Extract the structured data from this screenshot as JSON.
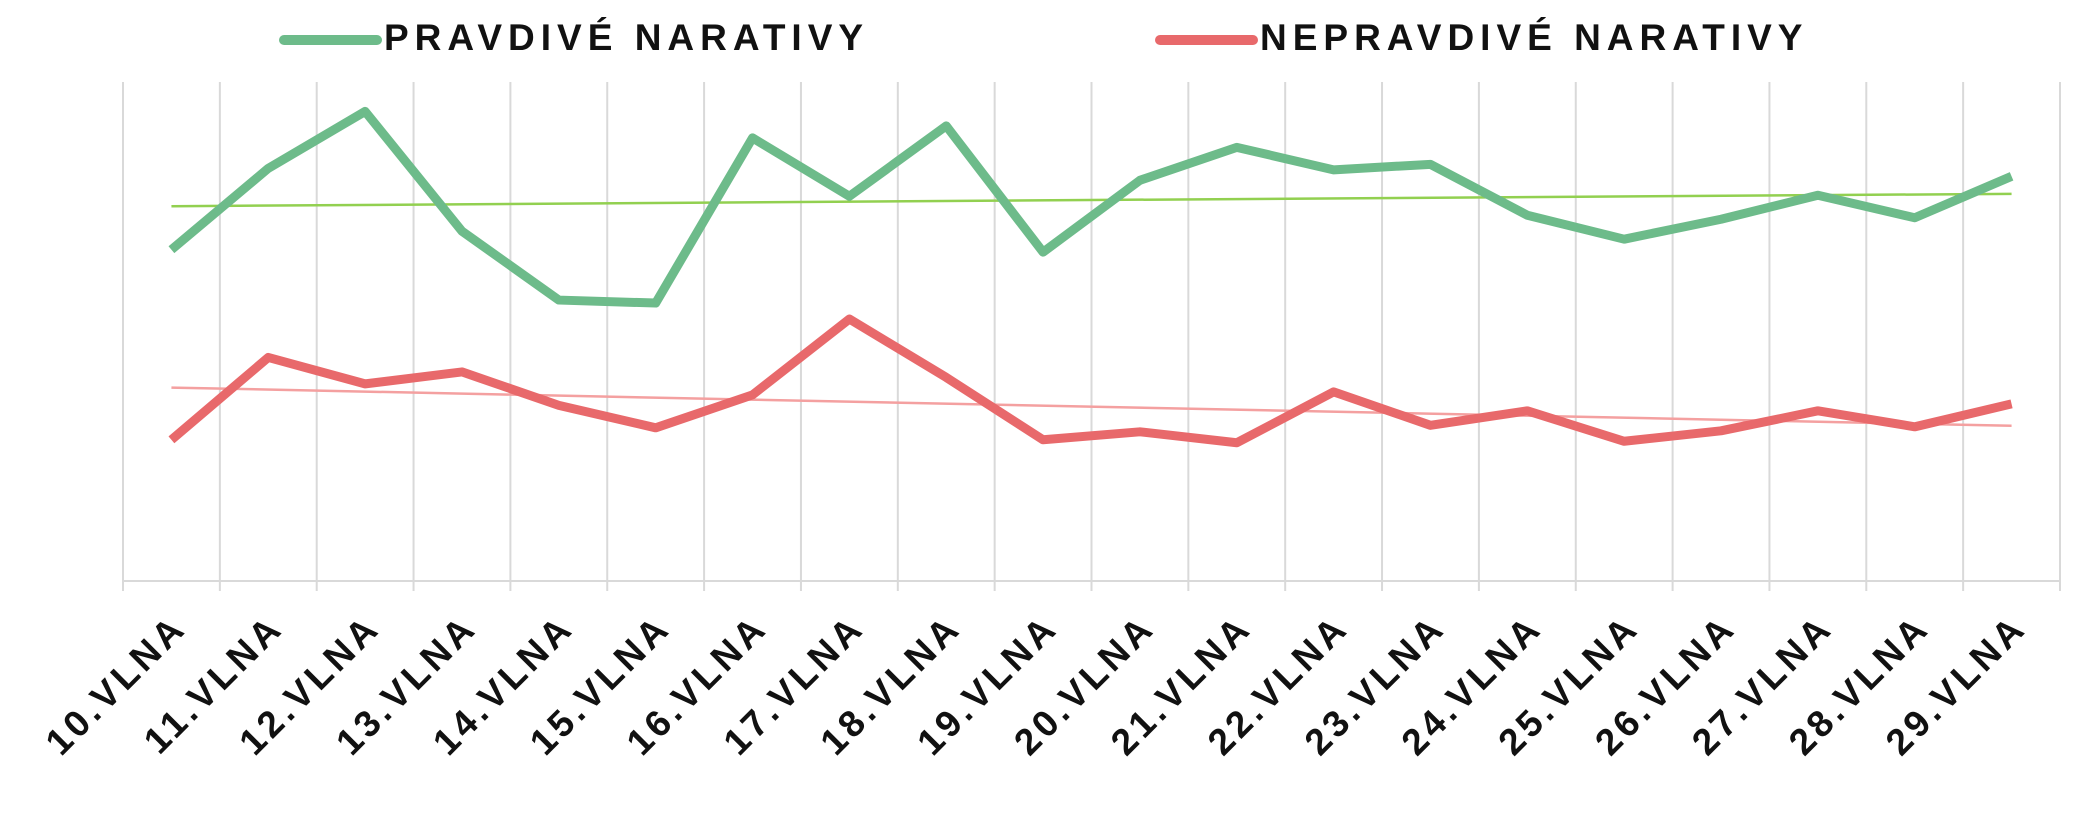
{
  "chart_data": {
    "type": "line",
    "categories": [
      "10.VLNA",
      "11.VLNA",
      "12.VLNA",
      "13.VLNA",
      "14.VLNA",
      "15.VLNA",
      "16.VLNA",
      "17.VLNA",
      "18.VLNA",
      "19.VLNA",
      "20.VLNA",
      "21.VLNA",
      "22.VLNA",
      "23.VLNA",
      "24.VLNA",
      "25.VLNA",
      "26.VLNA",
      "27.VLNA",
      "28.VLNA",
      "29.VLNA"
    ],
    "series": [
      {
        "name": "PRAVDIVÉ NARATIVY",
        "color": "#6dbb8a",
        "trendline": true,
        "trendline_color": "#92d050",
        "values": [
          66.4,
          82.7,
          94.1,
          70.1,
          56.3,
          55.7,
          88.8,
          77.1,
          91.2,
          65.9,
          80.3,
          86.9,
          82.4,
          83.5,
          73.3,
          68.5,
          72.5,
          77.3,
          72.8,
          81.1
        ]
      },
      {
        "name": "NEPRAVDIVÉ NARATIVY",
        "color": "#e8696b",
        "trendline": true,
        "trendline_color": "#f4a0a0",
        "values": [
          28.3,
          44.8,
          39.5,
          41.9,
          35.2,
          30.7,
          37.3,
          52.5,
          40.8,
          28.3,
          29.9,
          27.7,
          37.9,
          31.2,
          34.1,
          28.0,
          30.1,
          34.1,
          30.9,
          35.5
        ]
      }
    ],
    "ylim": [
      0,
      100
    ],
    "grid": "x",
    "legend": "top"
  }
}
